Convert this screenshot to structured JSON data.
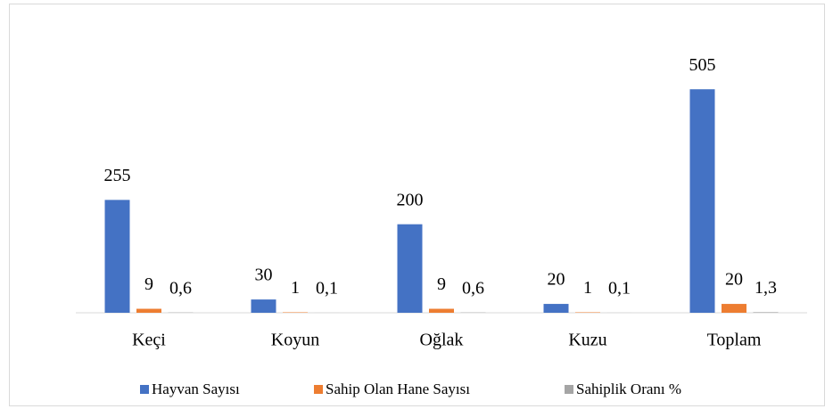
{
  "chart_data": {
    "type": "bar",
    "categories": [
      "Keçi",
      "Koyun",
      "Oğlak",
      "Kuzu",
      "Toplam"
    ],
    "series": [
      {
        "name": "Hayvan Sayısı",
        "color": "#4472c4",
        "values": [
          255,
          30,
          200,
          20,
          505
        ]
      },
      {
        "name": "Sahip Olan Hane Sayısı",
        "color": "#ed7d31",
        "values": [
          9,
          1,
          9,
          1,
          20
        ]
      },
      {
        "name": "Sahiplik Oranı %",
        "color": "#a5a5a5",
        "values": [
          0.6,
          0.1,
          0.6,
          0.1,
          1.3
        ],
        "value_labels": [
          "0,6",
          "0,1",
          "0,6",
          "0,1",
          "1,3"
        ]
      }
    ],
    "ylim": [
      0,
      600
    ],
    "legend": "bottom"
  }
}
